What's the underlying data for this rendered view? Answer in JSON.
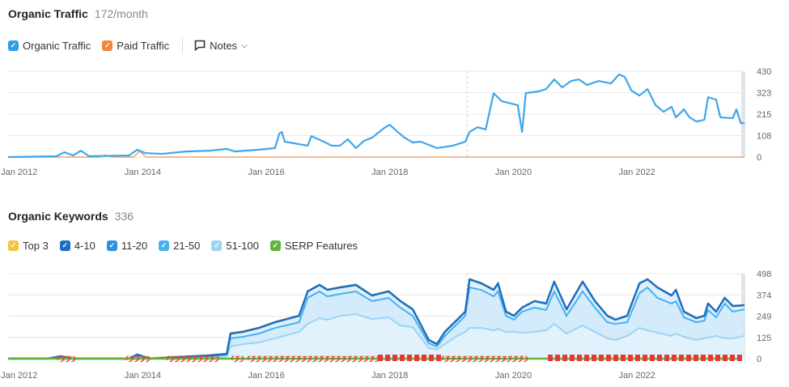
{
  "traffic": {
    "title": "Organic Traffic",
    "value": "172/month",
    "legend": [
      {
        "label": "Organic Traffic",
        "color": "#2e9ee8"
      },
      {
        "label": "Paid Traffic",
        "color": "#f0883a"
      }
    ],
    "notes_label": "Notes"
  },
  "keywords": {
    "title": "Organic Keywords",
    "value": "336",
    "legend": [
      {
        "label": "Top 3",
        "color": "#f5c242"
      },
      {
        "label": "4-10",
        "color": "#1a6fc4"
      },
      {
        "label": "11-20",
        "color": "#2e8fe0"
      },
      {
        "label": "21-50",
        "color": "#47b0ee"
      },
      {
        "label": "51-100",
        "color": "#9cd3f5"
      },
      {
        "label": "SERP Features",
        "color": "#62b33b"
      }
    ]
  },
  "x_ticks": [
    "Jan 2012",
    "Jan 2014",
    "Jan 2016",
    "Jan 2018",
    "Jan 2020",
    "Jan 2022"
  ],
  "chart_data": [
    {
      "type": "line",
      "title": "Organic Traffic",
      "xlabel": "",
      "ylabel": "",
      "xlim": [
        2011.82,
        2023.74
      ],
      "ylim": [
        0,
        430
      ],
      "y_ticks": [
        "430",
        "323",
        "215",
        "108",
        "0"
      ],
      "series": [
        {
          "name": "Organic Traffic",
          "points": [
            [
              2011.82,
              0
            ],
            [
              2012.6,
              4
            ],
            [
              2012.73,
              24
            ],
            [
              2012.87,
              8
            ],
            [
              2013.0,
              32
            ],
            [
              2013.13,
              4
            ],
            [
              2013.78,
              8
            ],
            [
              2013.91,
              37
            ],
            [
              2014.04,
              20
            ],
            [
              2014.31,
              16
            ],
            [
              2014.7,
              28
            ],
            [
              2015.09,
              32
            ],
            [
              2015.36,
              41
            ],
            [
              2015.49,
              28
            ],
            [
              2015.88,
              37
            ],
            [
              2016.14,
              45
            ],
            [
              2016.21,
              118
            ],
            [
              2016.25,
              126
            ],
            [
              2016.3,
              77
            ],
            [
              2016.67,
              57
            ],
            [
              2016.73,
              105
            ],
            [
              2016.93,
              77
            ],
            [
              2017.06,
              57
            ],
            [
              2017.19,
              57
            ],
            [
              2017.32,
              89
            ],
            [
              2017.45,
              45
            ],
            [
              2017.58,
              81
            ],
            [
              2017.71,
              97
            ],
            [
              2017.91,
              146
            ],
            [
              2018.0,
              162
            ],
            [
              2018.11,
              130
            ],
            [
              2018.24,
              97
            ],
            [
              2018.37,
              73
            ],
            [
              2018.5,
              77
            ],
            [
              2018.76,
              45
            ],
            [
              2019.02,
              57
            ],
            [
              2019.22,
              77
            ],
            [
              2019.29,
              126
            ],
            [
              2019.42,
              150
            ],
            [
              2019.55,
              138
            ],
            [
              2019.68,
              320
            ],
            [
              2019.81,
              280
            ],
            [
              2020.07,
              260
            ],
            [
              2020.14,
              126
            ],
            [
              2020.2,
              320
            ],
            [
              2020.4,
              329
            ],
            [
              2020.53,
              341
            ],
            [
              2020.66,
              389
            ],
            [
              2020.79,
              349
            ],
            [
              2020.93,
              381
            ],
            [
              2021.06,
              389
            ],
            [
              2021.19,
              361
            ],
            [
              2021.38,
              381
            ],
            [
              2021.58,
              369
            ],
            [
              2021.71,
              414
            ],
            [
              2021.8,
              402
            ],
            [
              2021.91,
              333
            ],
            [
              2022.04,
              308
            ],
            [
              2022.17,
              341
            ],
            [
              2022.3,
              260
            ],
            [
              2022.43,
              227
            ],
            [
              2022.56,
              252
            ],
            [
              2022.63,
              199
            ],
            [
              2022.76,
              239
            ],
            [
              2022.85,
              199
            ],
            [
              2022.96,
              178
            ],
            [
              2023.09,
              187
            ],
            [
              2023.15,
              300
            ],
            [
              2023.28,
              288
            ],
            [
              2023.35,
              199
            ],
            [
              2023.55,
              195
            ],
            [
              2023.61,
              239
            ],
            [
              2023.68,
              170
            ],
            [
              2023.74,
              170
            ]
          ]
        },
        {
          "name": "Paid Traffic",
          "points": [
            [
              2011.82,
              0
            ],
            [
              2013.3,
              0
            ],
            [
              2013.4,
              10
            ],
            [
              2013.5,
              0
            ],
            [
              2013.85,
              0
            ],
            [
              2013.95,
              30
            ],
            [
              2014.05,
              0
            ],
            [
              2023.74,
              0
            ]
          ]
        }
      ]
    },
    {
      "type": "area",
      "title": "Organic Keywords",
      "xlabel": "",
      "ylabel": "",
      "xlim": [
        2011.82,
        2023.74
      ],
      "ylim": [
        0,
        498
      ],
      "y_ticks": [
        "498",
        "374",
        "249",
        "125",
        "0"
      ],
      "columns": [
        "year",
        "Top 3 / 4-10",
        "11-20",
        "21-50 / 51-100"
      ],
      "points": [
        [
          2011.82,
          0,
          0,
          0
        ],
        [
          2012.47,
          0,
          0,
          0
        ],
        [
          2012.67,
          14,
          9,
          5
        ],
        [
          2012.87,
          0,
          0,
          0
        ],
        [
          2013.78,
          0,
          0,
          0
        ],
        [
          2013.91,
          24,
          19,
          14
        ],
        [
          2014.11,
          0,
          0,
          0
        ],
        [
          2014.83,
          14,
          9,
          0
        ],
        [
          2015.09,
          19,
          14,
          5
        ],
        [
          2015.36,
          28,
          24,
          14
        ],
        [
          2015.42,
          147,
          119,
          71
        ],
        [
          2015.62,
          157,
          128,
          85
        ],
        [
          2015.88,
          180,
          147,
          95
        ],
        [
          2016.14,
          213,
          180,
          119
        ],
        [
          2016.53,
          251,
          213,
          157
        ],
        [
          2016.67,
          394,
          356,
          204
        ],
        [
          2016.86,
          432,
          394,
          237
        ],
        [
          2016.99,
          403,
          365,
          228
        ],
        [
          2017.19,
          417,
          379,
          251
        ],
        [
          2017.45,
          432,
          394,
          261
        ],
        [
          2017.71,
          370,
          337,
          232
        ],
        [
          2017.98,
          394,
          356,
          242
        ],
        [
          2018.17,
          337,
          299,
          194
        ],
        [
          2018.37,
          289,
          251,
          185
        ],
        [
          2018.63,
          109,
          90,
          62
        ],
        [
          2018.76,
          85,
          71,
          52
        ],
        [
          2018.89,
          157,
          133,
          85
        ],
        [
          2019.09,
          228,
          204,
          133
        ],
        [
          2019.22,
          275,
          251,
          157
        ],
        [
          2019.29,
          465,
          417,
          180
        ],
        [
          2019.48,
          441,
          403,
          180
        ],
        [
          2019.68,
          403,
          365,
          166
        ],
        [
          2019.75,
          441,
          394,
          175
        ],
        [
          2019.88,
          275,
          251,
          157
        ],
        [
          2020.01,
          251,
          228,
          157
        ],
        [
          2020.14,
          299,
          275,
          152
        ],
        [
          2020.34,
          337,
          299,
          157
        ],
        [
          2020.53,
          323,
          285,
          166
        ],
        [
          2020.66,
          451,
          394,
          204
        ],
        [
          2020.86,
          289,
          251,
          147
        ],
        [
          2020.99,
          370,
          323,
          171
        ],
        [
          2021.12,
          451,
          394,
          194
        ],
        [
          2021.32,
          337,
          299,
          157
        ],
        [
          2021.52,
          251,
          213,
          119
        ],
        [
          2021.65,
          228,
          204,
          109
        ],
        [
          2021.84,
          251,
          213,
          133
        ],
        [
          2022.04,
          441,
          384,
          180
        ],
        [
          2022.17,
          465,
          417,
          166
        ],
        [
          2022.33,
          417,
          356,
          152
        ],
        [
          2022.56,
          370,
          323,
          133
        ],
        [
          2022.63,
          403,
          337,
          147
        ],
        [
          2022.76,
          275,
          242,
          128
        ],
        [
          2022.96,
          237,
          213,
          109
        ],
        [
          2023.09,
          251,
          223,
          119
        ],
        [
          2023.15,
          323,
          285,
          123
        ],
        [
          2023.28,
          275,
          242,
          133
        ],
        [
          2023.42,
          356,
          323,
          119
        ],
        [
          2023.55,
          308,
          275,
          119
        ],
        [
          2023.74,
          313,
          289,
          133
        ]
      ]
    }
  ]
}
